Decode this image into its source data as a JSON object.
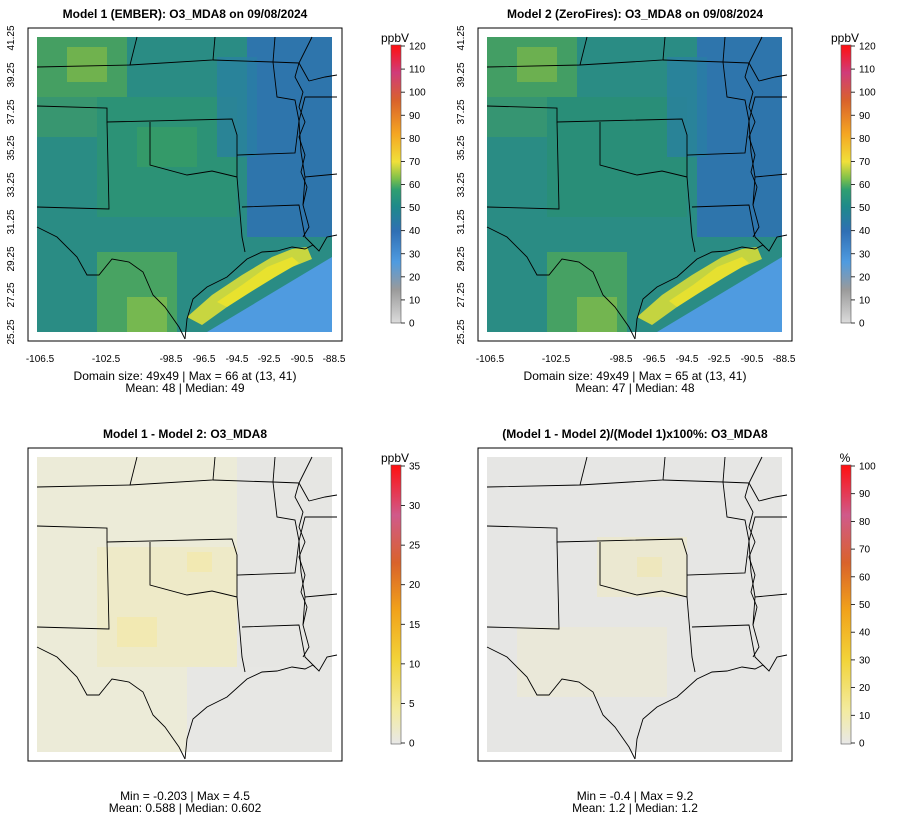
{
  "chart_data": [
    {
      "id": "m1",
      "type": "heatmap",
      "title": "Model 1 (EMBER): O3_MDA8 on 09/08/2024",
      "variable": "O3_MDA8",
      "grid": "49x49",
      "unit_label": "ppbV",
      "colorbar_ticks": [
        0,
        10,
        20,
        30,
        40,
        50,
        60,
        70,
        80,
        90,
        100,
        110,
        120
      ],
      "colorbar_range": [
        0,
        120
      ],
      "x_ticks": [
        "-106.5",
        "-102.5",
        "-98.5",
        "-96.5",
        "-94.5",
        "-92.5",
        "-90.5",
        "-88.5"
      ],
      "y_ticks": [
        "25.25",
        "27.25",
        "29.25",
        "31.25",
        "33.25",
        "35.25",
        "37.25",
        "39.25",
        "41.25"
      ],
      "xlim": [
        -106.5,
        -88.5
      ],
      "ylim": [
        25.25,
        41.25
      ],
      "stats_line1": "Domain size: 49x49 | Max = 66 at (13, 41)",
      "stats_line2": "Mean: 48 |  Median: 49",
      "max": 66,
      "mean": 48,
      "median": 49
    },
    {
      "id": "m2",
      "type": "heatmap",
      "title": "Model 2 (ZeroFires): O3_MDA8 on 09/08/2024",
      "variable": "O3_MDA8",
      "grid": "49x49",
      "unit_label": "ppbV",
      "colorbar_ticks": [
        0,
        10,
        20,
        30,
        40,
        50,
        60,
        70,
        80,
        90,
        100,
        110,
        120
      ],
      "colorbar_range": [
        0,
        120
      ],
      "x_ticks": [
        "-106.5",
        "-102.5",
        "-98.5",
        "-96.5",
        "-94.5",
        "-92.5",
        "-90.5",
        "-88.5"
      ],
      "y_ticks": [
        "25.25",
        "27.25",
        "29.25",
        "31.25",
        "33.25",
        "35.25",
        "37.25",
        "39.25",
        "41.25"
      ],
      "xlim": [
        -106.5,
        -88.5
      ],
      "ylim": [
        25.25,
        41.25
      ],
      "stats_line1": "Domain size: 49x49 | Max = 65 at (13, 41)",
      "stats_line2": "Mean: 47 |  Median: 48",
      "max": 65,
      "mean": 47,
      "median": 48
    },
    {
      "id": "diff",
      "type": "heatmap",
      "title": "Model 1 - Model 2: O3_MDA8",
      "variable": "O3_MDA8",
      "unit_label": "ppbV",
      "colorbar_ticks": [
        0,
        5,
        10,
        15,
        20,
        25,
        30,
        35
      ],
      "colorbar_range": [
        0,
        35
      ],
      "stats_line1": "Min = -0.203 | Max = 4.5",
      "stats_line2": "Mean: 0.588 |  Median: 0.602",
      "min": -0.203,
      "max": 4.5,
      "mean": 0.588,
      "median": 0.602
    },
    {
      "id": "pct",
      "type": "heatmap",
      "title": "(Model 1 - Model 2)/(Model 1)x100%: O3_MDA8",
      "variable": "O3_MDA8",
      "unit_label": "%",
      "colorbar_ticks": [
        0,
        10,
        20,
        30,
        40,
        50,
        60,
        70,
        80,
        90,
        100
      ],
      "colorbar_range": [
        0,
        100
      ],
      "stats_line1": "Min = -0.4 | Max = 9.2",
      "stats_line2": "Mean: 1.2 |  Median: 1.2",
      "min": -0.4,
      "max": 9.2,
      "mean": 1.2,
      "median": 1.2
    }
  ],
  "colors": {
    "colorbar_stops": [
      "#dcdcdc",
      "#a8a8a8",
      "#4f9be0",
      "#2f6fb4",
      "#1e8c8c",
      "#2f9f70",
      "#7ec04a",
      "#f0e03a",
      "#f5a623",
      "#d9622b",
      "#d03c7a",
      "#ff1010"
    ]
  }
}
